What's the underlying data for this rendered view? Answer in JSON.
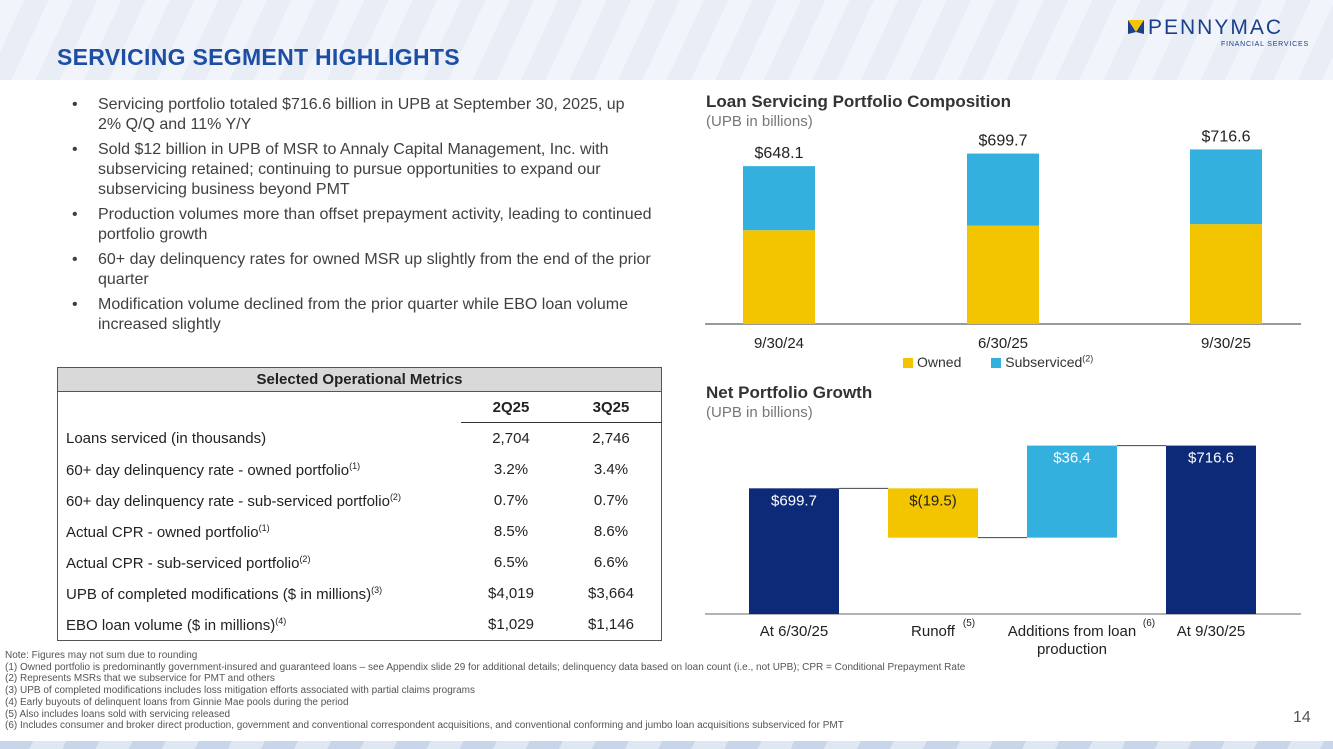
{
  "header": {
    "title": "SERVICING SEGMENT HIGHLIGHTS"
  },
  "logo": {
    "name": "PENNYMAC",
    "tagline": "FINANCIAL SERVICES",
    "colors": {
      "blue": "#1b3f8c",
      "yellow": "#f2c500"
    }
  },
  "bullets": [
    "Servicing portfolio totaled $716.6 billion in UPB at September 30, 2025, up 2% Q/Q and 11% Y/Y",
    "Sold $12 billion in UPB of MSR to Annaly Capital Management, Inc. with subservicing retained; continuing to pursue opportunities to expand our subservicing business beyond PMT",
    "Production volumes more than offset prepayment activity, leading to continued portfolio growth",
    "60+ day delinquency rates for owned MSR up slightly from the end of the prior quarter",
    "Modification volume declined from the prior quarter while EBO loan volume increased slightly"
  ],
  "metrics_table": {
    "title": "Selected Operational Metrics",
    "columns": [
      "2Q25",
      "3Q25"
    ],
    "rows": [
      {
        "label": "Loans serviced (in thousands)",
        "sup": "",
        "values": [
          "2,704",
          "2,746"
        ]
      },
      {
        "label": "60+ day delinquency rate - owned portfolio",
        "sup": "(1)",
        "values": [
          "3.2%",
          "3.4%"
        ]
      },
      {
        "label": "60+ day delinquency rate - sub-serviced portfolio",
        "sup": "(2)",
        "values": [
          "0.7%",
          "0.7%"
        ]
      },
      {
        "label": "Actual CPR - owned portfolio",
        "sup": "(1)",
        "values": [
          "8.5%",
          "8.6%"
        ]
      },
      {
        "label": "Actual CPR - sub-serviced portfolio",
        "sup": "(2)",
        "values": [
          "6.5%",
          "6.6%"
        ]
      },
      {
        "label": "UPB of completed modifications ($ in millions)",
        "sup": "(3)",
        "values": [
          "$4,019",
          "$3,664"
        ]
      },
      {
        "label": "EBO loan volume ($ in millions)",
        "sup": "(4)",
        "values": [
          "$1,029",
          "$1,146"
        ]
      }
    ]
  },
  "chart_data": [
    {
      "type": "bar",
      "title": "Loan Servicing Portfolio Composition",
      "subtitle": "(UPB in billions)",
      "categories": [
        "9/30/24",
        "6/30/25",
        "9/30/25"
      ],
      "series": [
        {
          "name": "Owned",
          "values": [
            385,
            404,
            410
          ]
        },
        {
          "name": "Subserviced",
          "sup": "(2)",
          "values": [
            263.1,
            295.7,
            306.6
          ]
        }
      ],
      "totals": [
        648.1,
        699.7,
        716.6
      ],
      "total_labels": [
        "$648.1",
        "$699.7",
        "$716.6"
      ],
      "stacked": true,
      "ylim": [
        0,
        780
      ],
      "colors": [
        "#f2c500",
        "#34b0de"
      ],
      "legend": "bottom"
    },
    {
      "type": "bar",
      "subtype": "waterfall",
      "title": "Net Portfolio Growth",
      "subtitle": "(UPB in billions)",
      "categories": [
        "At 6/30/25",
        "Runoff",
        "Additions from loan production",
        "At 9/30/25"
      ],
      "category_sups": [
        "",
        "(5)",
        "(6)",
        ""
      ],
      "values": [
        699.7,
        -19.5,
        36.4,
        716.6
      ],
      "value_labels": [
        "$699.7",
        "$(19.5)",
        "$36.4",
        "$716.6"
      ],
      "kinds": [
        "total",
        "delta",
        "delta",
        "total"
      ],
      "ylim": [
        0,
        720
      ],
      "colors": {
        "total": "#0d2a78",
        "decrease": "#f2c500",
        "increase": "#34b0de"
      }
    }
  ],
  "notes": [
    "Note: Figures may not sum due to rounding",
    "(1) Owned portfolio is predominantly government-insured and guaranteed loans – see Appendix slide 29 for additional details; delinquency data based on loan count (i.e., not UPB); CPR = Conditional Prepayment Rate",
    "(2) Represents MSRs that we subservice for PMT and others",
    "(3) UPB of completed modifications includes loss mitigation efforts associated with partial claims programs",
    "(4) Early buyouts of delinquent loans from Ginnie Mae pools during the period",
    "(5) Also includes loans sold with servicing released",
    "(6) Includes consumer and broker direct production, government and conventional correspondent acquisitions, and conventional conforming and jumbo loan acquisitions subserviced for PMT"
  ],
  "page_number": "14"
}
